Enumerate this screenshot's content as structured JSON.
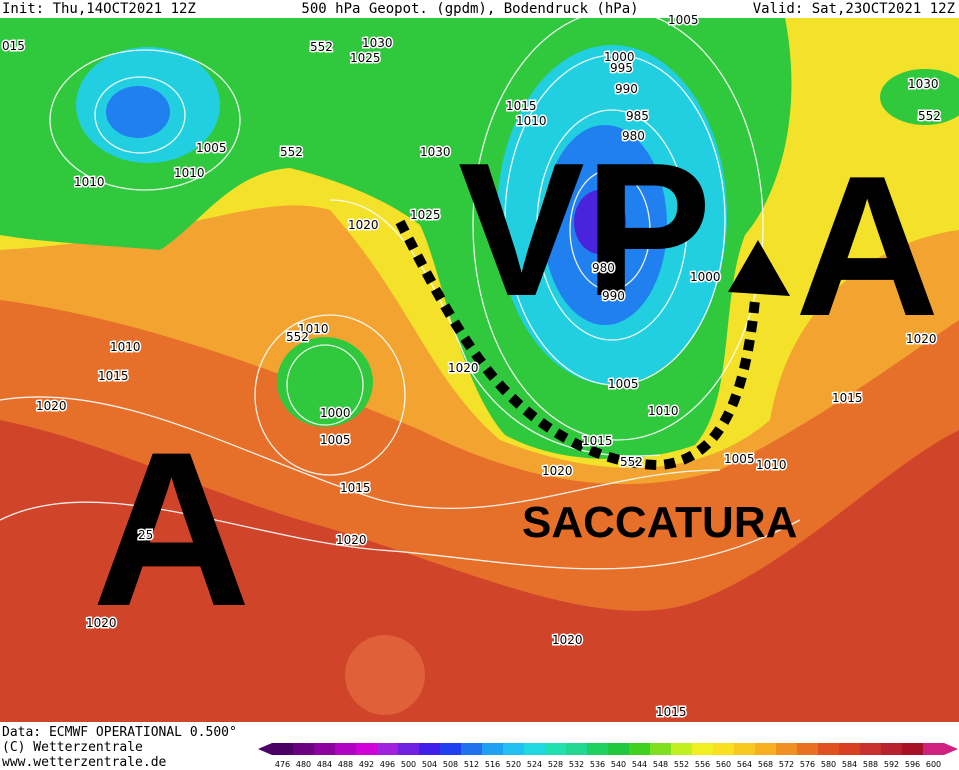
{
  "header": {
    "init": "Init: Thu,14OCT2021 12Z",
    "title": "500 hPa Geopot. (gpdm), Bodendruck (hPa)",
    "valid": "Valid: Sat,23OCT2021 12Z"
  },
  "annotations": {
    "low": "VP",
    "high_east": "A",
    "high_west": "A",
    "trough": "SACCATURA"
  },
  "isobar_labels": [
    "015",
    "552",
    "1030",
    "1025",
    "1005",
    "1000",
    "995",
    "990",
    "1015",
    "1010",
    "985",
    "980",
    "1005",
    "552",
    "1030",
    "1010",
    "1010",
    "1025",
    "1020",
    "980",
    "990",
    "1000",
    "1030",
    "552",
    "1020",
    "1010",
    "552",
    "1010",
    "1015",
    "1020",
    "1005",
    "1020",
    "1000",
    "1005",
    "1010",
    "1015",
    "1015",
    "1005",
    "1010",
    "552",
    "1020",
    "1015",
    "1020",
    "25",
    "1020",
    "1020",
    "1015"
  ],
  "footer": {
    "data": "Data: ECMWF OPERATIONAL 0.500°",
    "copyright": "(C) Wetterzentrale",
    "website": "www.wetterzentrale.de"
  },
  "colorbar": {
    "labels": [
      "476",
      "480",
      "484",
      "488",
      "492",
      "496",
      "500",
      "504",
      "508",
      "512",
      "516",
      "520",
      "524",
      "528",
      "532",
      "536",
      "540",
      "544",
      "548",
      "552",
      "556",
      "560",
      "564",
      "568",
      "572",
      "576",
      "580",
      "584",
      "588",
      "592",
      "596",
      "600"
    ],
    "colors": [
      "#4b0066",
      "#6a0080",
      "#8c00a0",
      "#b000c0",
      "#d000d8",
      "#a020e0",
      "#7020e0",
      "#4020e8",
      "#2040f0",
      "#2070f0",
      "#20a0f0",
      "#20c0f0",
      "#20d8e0",
      "#20e0b0",
      "#20d890",
      "#20d060",
      "#20c840",
      "#40d020",
      "#80e020",
      "#c0f020",
      "#f0f020",
      "#f8e020",
      "#f8c820",
      "#f8b020",
      "#f09020",
      "#e87020",
      "#e05020",
      "#d84020",
      "#c83030",
      "#b82030",
      "#a81028",
      "#d02080"
    ]
  }
}
